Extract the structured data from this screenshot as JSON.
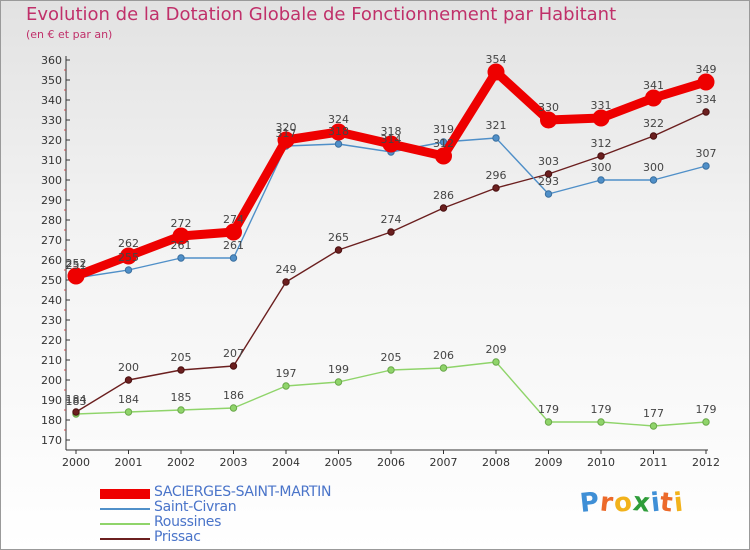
{
  "title": "Evolution de la Dotation Globale de Fonctionnement par Habitant",
  "subtitle": "(en € et par an)",
  "logo": {
    "letters": [
      "P",
      "r",
      "o",
      "x",
      "i",
      "t",
      "i"
    ],
    "colors": [
      "#3f8fd6",
      "#ec6a2a",
      "#f2b21b",
      "#2f9d3a",
      "#3f8fd6",
      "#ec6a2a",
      "#f2b21b"
    ]
  },
  "chart_data": {
    "type": "line",
    "title": "Evolution de la Dotation Globale de Fonctionnement par Habitant",
    "subtitle": "(en € et par an)",
    "x": [
      "2000",
      "2001",
      "2002",
      "2003",
      "2004",
      "2005",
      "2006",
      "2007",
      "2008",
      "2009",
      "2010",
      "2011",
      "2012"
    ],
    "ylim": [
      170,
      360
    ],
    "yticks": [
      170,
      180,
      190,
      200,
      210,
      220,
      230,
      240,
      250,
      260,
      270,
      280,
      290,
      300,
      310,
      320,
      330,
      340,
      350,
      360
    ],
    "grid": false,
    "legend_position": "bottom-left",
    "series": [
      {
        "name": "SACIERGES-SAINT-MARTIN",
        "color": "#ee0000",
        "values": [
          252,
          262,
          272,
          274,
          320,
          324,
          318,
          312,
          354,
          330,
          331,
          341,
          349
        ]
      },
      {
        "name": "Saint-Civran",
        "color": "#4f8fc8",
        "values": [
          251,
          255,
          261,
          261,
          317,
          318,
          314,
          319,
          321,
          293,
          300,
          300,
          307
        ]
      },
      {
        "name": "Roussines",
        "color": "#8fd46a",
        "values": [
          183,
          184,
          185,
          186,
          197,
          199,
          205,
          206,
          209,
          179,
          179,
          177,
          179
        ]
      },
      {
        "name": "Prissac",
        "color": "#6b1f1f",
        "values": [
          184,
          200,
          205,
          207,
          249,
          265,
          274,
          286,
          296,
          303,
          312,
          322,
          334
        ]
      }
    ]
  }
}
